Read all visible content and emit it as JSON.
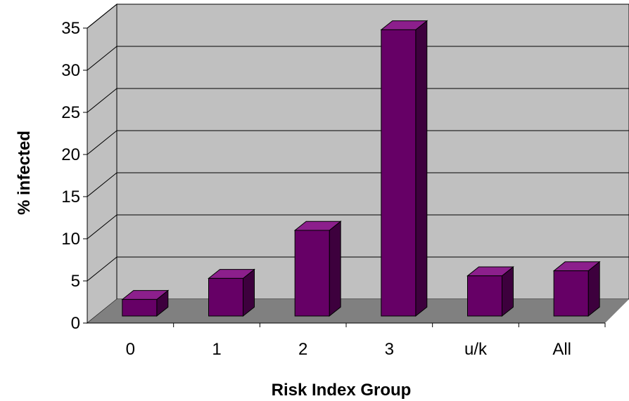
{
  "chart_data": {
    "type": "bar",
    "style": "3d-column",
    "categories": [
      "0",
      "1",
      "2",
      "3",
      "u/k",
      "All"
    ],
    "values": [
      2.8,
      5.3,
      11.0,
      34.8,
      5.6,
      6.2
    ],
    "xlabel": "Risk Index Group",
    "ylabel": "% infected",
    "ylim": [
      0,
      35
    ],
    "yticks": [
      "0",
      "5",
      "10",
      "15",
      "20",
      "25",
      "30",
      "35"
    ],
    "grid": true,
    "legend": "none",
    "colors": {
      "bar_front": "#660066",
      "bar_top": "#8c1f8c",
      "bar_side": "#3d003d",
      "wall": "#c0c0c0",
      "floor": "#808080",
      "gridline": "#000000"
    }
  }
}
